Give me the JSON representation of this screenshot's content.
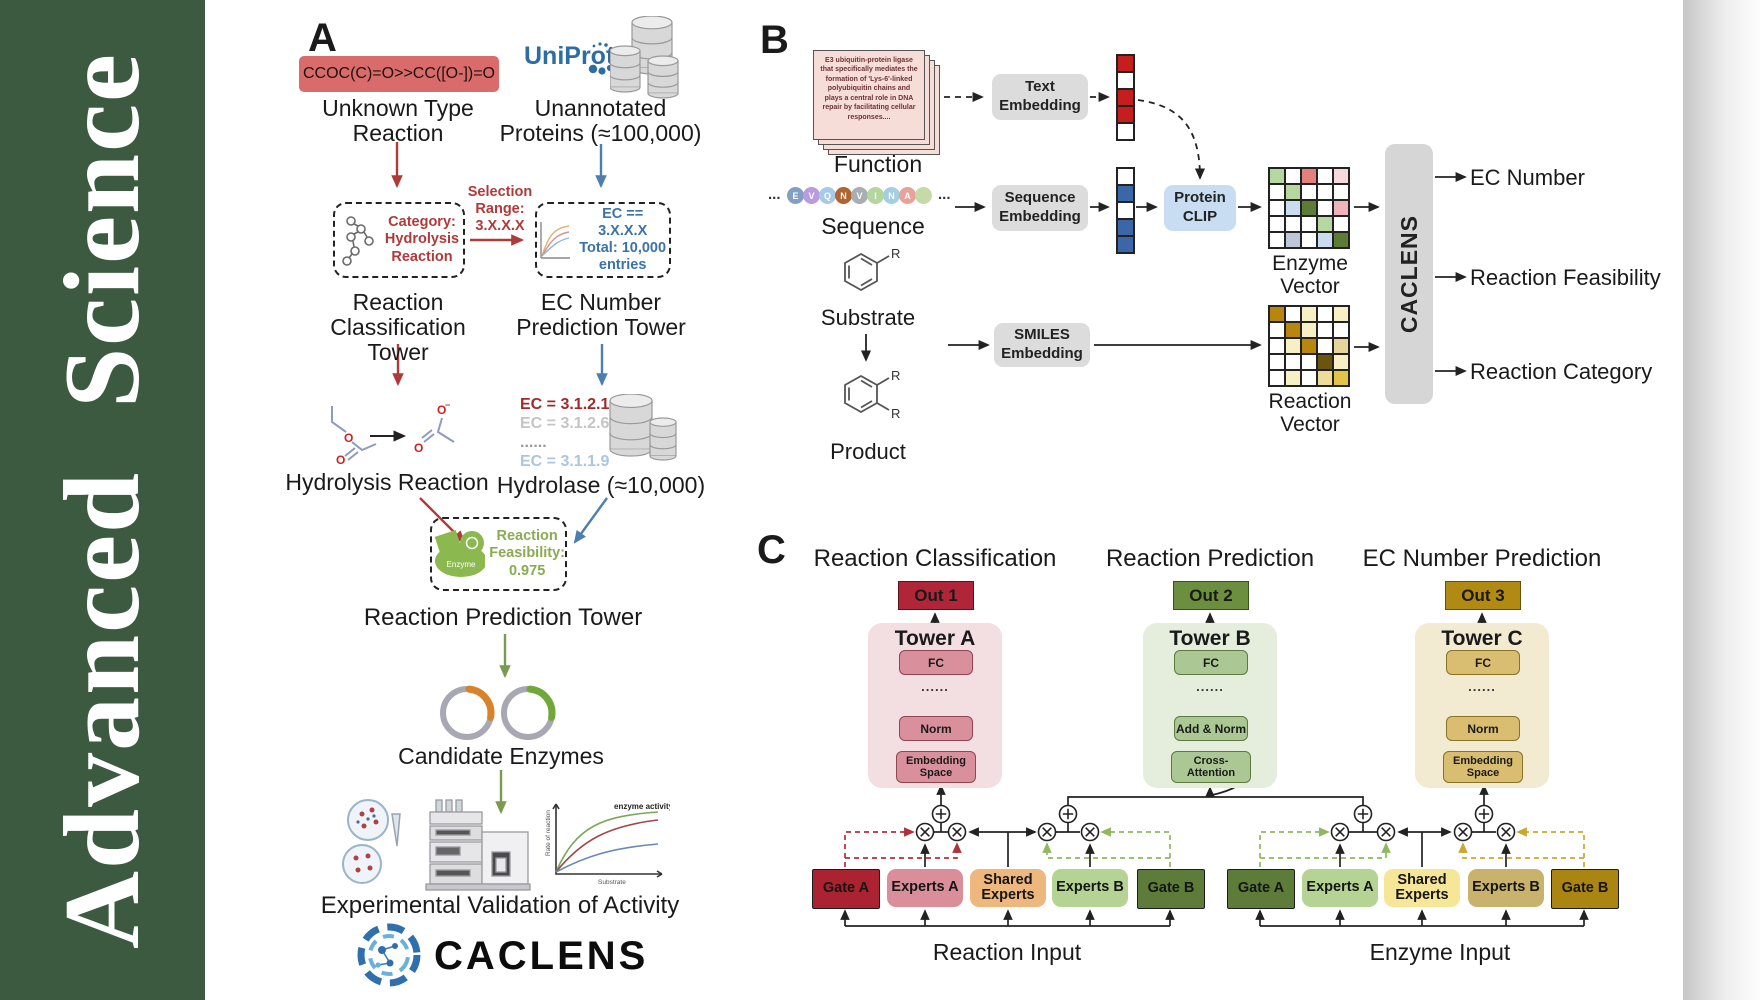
{
  "sidebar": {
    "title": "Advanced  Science",
    "color": "#3b5a40"
  },
  "panelA": {
    "label": "A",
    "smiles": "CCOC(C)=O>>CC([O-])=O",
    "unknown": [
      "Unknown Type",
      "Reaction"
    ],
    "uniprot": "UniProt",
    "unannotated": [
      "Unannotated",
      "Proteins (≈100,000)"
    ],
    "category_lines": [
      "Category:",
      "Hydrolysis",
      "Reaction"
    ],
    "selection_lines": [
      "Selection",
      "Range:",
      "3.X.X.X"
    ],
    "ec_box_lines": [
      "EC == 3.X.X.X",
      "Total: 10,000",
      "entries"
    ],
    "tower_classification": [
      "Reaction",
      "Classification Tower"
    ],
    "tower_ec": [
      "EC Number",
      "Prediction Tower"
    ],
    "ec_candidates": [
      {
        "text": "EC = 3.1.2.1",
        "color": "#9e2b2b"
      },
      {
        "text": "EC = 3.1.2.6",
        "color": "#c4c4c4"
      },
      {
        "text": "......",
        "color": "#9a9a9a"
      },
      {
        "text": "EC = 3.1.1.9",
        "color": "#a9c7e2"
      }
    ],
    "hydrolysis": "Hydrolysis Reaction",
    "hydrolase": "Hydrolase (≈10,000)",
    "enzyme_badge": "Enzyme",
    "feasibility_lines": [
      "Reaction",
      "Feasibility:",
      "0.975"
    ],
    "tower_prediction": "Reaction Prediction Tower",
    "candidates": "Candidate Enzymes",
    "validation": "Experimental Validation of Activity",
    "brand": "CACLENS",
    "minigraph": {
      "ylabel": "Rate of reaction",
      "xlabel": "Substrate",
      "note": "enzyme activity"
    }
  },
  "panelB": {
    "label": "B",
    "function_text": "E3 ubiquitin-protein ligase that specifically mediates the formation of 'Lys-6'-linked polyubiquitin chains and plays a central role in DNA repair by facilitating cellular responses....",
    "function_label": "Function",
    "ellipsis": "...",
    "residues": [
      {
        "letter": "E",
        "color": "#83a0c4"
      },
      {
        "letter": "V",
        "color": "#bb9be0"
      },
      {
        "letter": "Q",
        "color": "#a6cbe8"
      },
      {
        "letter": "N",
        "color": "#b26430"
      },
      {
        "letter": "V",
        "color": "#a9aeb4"
      },
      {
        "letter": "I",
        "color": "#b3d79e"
      },
      {
        "letter": "N",
        "color": "#a3cfe2"
      },
      {
        "letter": "A",
        "color": "#e8a29a"
      },
      {
        "letter": "",
        "color": "#c6daa8"
      }
    ],
    "sequence_label": "Sequence",
    "substrate_label": "Substrate",
    "product_label": "Product",
    "r_label": "R",
    "text_embedding": "Text Embedding",
    "sequence_embedding": "Sequence Embedding",
    "smiles_embedding": "SMILES Embedding",
    "protein_clip": "Protein CLIP",
    "enzyme_vector_label": "Enzyme Vector",
    "reaction_vector_label": "Reaction Vector",
    "caclens": "CACLENS",
    "outputs": [
      "EC Number",
      "Reaction Feasibility",
      "Reaction Category"
    ],
    "text_vector_cells": [
      "#c41e1e",
      "#ffffff",
      "#c41e1e",
      "#c41e1e",
      "#ffffff"
    ],
    "seq_vector_cells": [
      "#ffffff",
      "#3b66a8",
      "#ffffff",
      "#3b66a8",
      "#3b66a8"
    ],
    "enzyme_grid": [
      [
        "#b7d7a0",
        "#ffffff",
        "#e2807e",
        "#ffffff",
        "#f6d9dc"
      ],
      [
        "#ffffff",
        "#b7d7a0",
        "#ffffff",
        "#ffffff",
        "#ffffff"
      ],
      [
        "#ffffff",
        "#ccdcf0",
        "#5d7d37",
        "#ffffff",
        "#efb3ba"
      ],
      [
        "#ffffff",
        "#ffffff",
        "#ffffff",
        "#b7d7a0",
        "#ffffff"
      ],
      [
        "#ffffff",
        "#bcc8d8",
        "#ffffff",
        "#ccdcf0",
        "#5d7d37"
      ]
    ],
    "reaction_grid": [
      [
        "#b8860f",
        "#ffffff",
        "#f7efc6",
        "#ffffff",
        "#f7efc6"
      ],
      [
        "#ffffff",
        "#b8860f",
        "#f7efc6",
        "#ffffff",
        "#ffffff"
      ],
      [
        "#ffffff",
        "#f7efc6",
        "#b8860f",
        "#ffffff",
        "#e7d49a"
      ],
      [
        "#ffffff",
        "#ffffff",
        "#ffffff",
        "#6a5410",
        "#f7efc6"
      ],
      [
        "#ffffff",
        "#f7efc6",
        "#ffffff",
        "#f0dc9a",
        "#e3c24a"
      ]
    ]
  },
  "panelC": {
    "label": "C",
    "dots": "......",
    "columns": [
      {
        "title": "Reaction Classification",
        "out": "Out 1",
        "tower": "Tower A",
        "layers": [
          "FC",
          "Norm",
          "Embedding Space"
        ],
        "colors": {
          "panel": "#f3dee2",
          "box": "#d9909c",
          "box_border": "#8f4652",
          "out": "#b02538",
          "out_border": "#5f1018"
        }
      },
      {
        "title": "Reaction Prediction",
        "out": "Out 2",
        "tower": "Tower B",
        "layers": [
          "FC",
          "Add & Norm",
          "Cross-Attention"
        ],
        "colors": {
          "panel": "#e5eedd",
          "box": "#abc793",
          "box_border": "#5c7a40",
          "out": "#6b8e3f",
          "out_border": "#39511e"
        }
      },
      {
        "title": "EC Number Prediction",
        "out": "Out 3",
        "tower": "Tower C",
        "layers": [
          "FC",
          "Norm",
          "Embedding Space"
        ],
        "colors": {
          "panel": "#f2ebd2",
          "box": "#d9bd70",
          "box_border": "#8a7326",
          "out": "#b08a12",
          "out_border": "#64500a"
        }
      }
    ],
    "groups": [
      {
        "input": "Reaction Input",
        "boxes": [
          {
            "label": "Gate A",
            "color": "#ab2330",
            "gate": true
          },
          {
            "label": "Experts A",
            "color": "#d98e9a",
            "gate": false
          },
          {
            "label": "Shared Experts",
            "color": "#edb77e",
            "gate": false
          },
          {
            "label": "Experts B",
            "color": "#b5d494",
            "gate": false
          },
          {
            "label": "Gate B",
            "color": "#5e7c39",
            "gate": true
          }
        ]
      },
      {
        "input": "Enzyme Input",
        "boxes": [
          {
            "label": "Gate A",
            "color": "#5e7c39",
            "gate": true
          },
          {
            "label": "Experts A",
            "color": "#b5d494",
            "gate": false
          },
          {
            "label": "Shared Experts",
            "color": "#f6e698",
            "gate": false
          },
          {
            "label": "Experts B",
            "color": "#c9b26b",
            "gate": false
          },
          {
            "label": "Gate B",
            "color": "#ab8512",
            "gate": true
          }
        ]
      }
    ]
  },
  "colors": {
    "sidebar_green": "#3b5a40",
    "arrow_red": "#b03a3a",
    "arrow_blue": "#4a7fae",
    "arrow_green": "#7a9a4e",
    "uniprot_blue": "#2e6da4",
    "gate_dash_red": "#b0303c",
    "gate_dash_green": "#8fb860",
    "gate_dash_gold": "#c9a92c"
  }
}
